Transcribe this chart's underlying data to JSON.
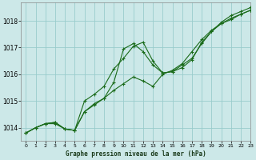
{
  "title": "Graphe pression niveau de la mer (hPa)",
  "background_color": "#cce8e8",
  "grid_color": "#99cccc",
  "line_color": "#1a6b1a",
  "xlim": [
    -0.5,
    23
  ],
  "ylim": [
    1013.5,
    1018.7
  ],
  "yticks": [
    1014,
    1015,
    1016,
    1017,
    1018
  ],
  "xticks": [
    0,
    1,
    2,
    3,
    4,
    5,
    6,
    7,
    8,
    9,
    10,
    11,
    12,
    13,
    14,
    15,
    16,
    17,
    18,
    19,
    20,
    21,
    22,
    23
  ],
  "series1_x": [
    0,
    1,
    2,
    3,
    4,
    5,
    6,
    7,
    8,
    9,
    10,
    11,
    12,
    13,
    14,
    15,
    16,
    17,
    18,
    19,
    20,
    21,
    22,
    23
  ],
  "series1_y": [
    1013.8,
    1014.0,
    1014.15,
    1014.2,
    1013.95,
    1013.9,
    1014.6,
    1014.85,
    1015.1,
    1015.4,
    1015.65,
    1015.9,
    1015.75,
    1015.55,
    1016.0,
    1016.15,
    1016.4,
    1016.85,
    1017.3,
    1017.65,
    1017.9,
    1018.05,
    1018.25,
    1018.4
  ],
  "series2_x": [
    0,
    1,
    2,
    3,
    4,
    5,
    6,
    7,
    8,
    9,
    10,
    11,
    12,
    13,
    14,
    15,
    16,
    17,
    18,
    19,
    20,
    21,
    22,
    23
  ],
  "series2_y": [
    1013.8,
    1014.0,
    1014.15,
    1014.15,
    1013.95,
    1013.9,
    1015.0,
    1015.25,
    1015.55,
    1016.2,
    1016.6,
    1017.05,
    1017.2,
    1016.5,
    1016.05,
    1016.1,
    1016.25,
    1016.55,
    1017.2,
    1017.6,
    1017.95,
    1018.2,
    1018.35,
    1018.5
  ],
  "series3_x": [
    0,
    1,
    2,
    3,
    4,
    5,
    6,
    7,
    8,
    9,
    10,
    11,
    12,
    13,
    14,
    15,
    16,
    17,
    18,
    19,
    20,
    21,
    22,
    23
  ],
  "series3_y": [
    1013.8,
    1014.0,
    1014.15,
    1014.2,
    1013.95,
    1013.9,
    1014.6,
    1014.9,
    1015.1,
    1015.7,
    1016.95,
    1017.15,
    1016.85,
    1016.35,
    1016.05,
    1016.1,
    1016.35,
    1016.6,
    1017.15,
    1017.6,
    1017.9,
    1018.1,
    1018.25,
    1018.4
  ]
}
